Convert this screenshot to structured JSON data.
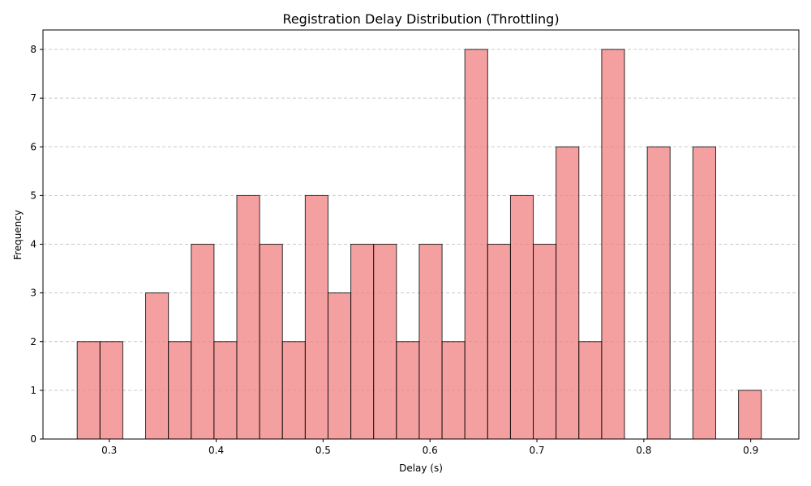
{
  "chart_data": {
    "type": "bar",
    "title": "Registration Delay Distribution (Throttling)",
    "xlabel": "Delay (s)",
    "ylabel": "Frequency",
    "bin_start": 0.27,
    "bin_width": 0.02133,
    "values": [
      2,
      2,
      0,
      3,
      2,
      4,
      2,
      5,
      4,
      2,
      5,
      3,
      4,
      4,
      2,
      4,
      2,
      8,
      4,
      5,
      4,
      6,
      2,
      8,
      0,
      6,
      0,
      6,
      0,
      1
    ],
    "xlim": [
      0.238,
      0.945
    ],
    "ylim": [
      0,
      8.4
    ],
    "xticks": [
      "0.3",
      "0.4",
      "0.5",
      "0.6",
      "0.7",
      "0.8",
      "0.9"
    ],
    "yticks": [
      "0",
      "1",
      "2",
      "3",
      "4",
      "5",
      "6",
      "7",
      "8"
    ],
    "grid": "y-dashed",
    "colors": {
      "bar_fill": "#f08080",
      "bar_edge": "#000000",
      "grid": "#c8c8c8"
    }
  }
}
